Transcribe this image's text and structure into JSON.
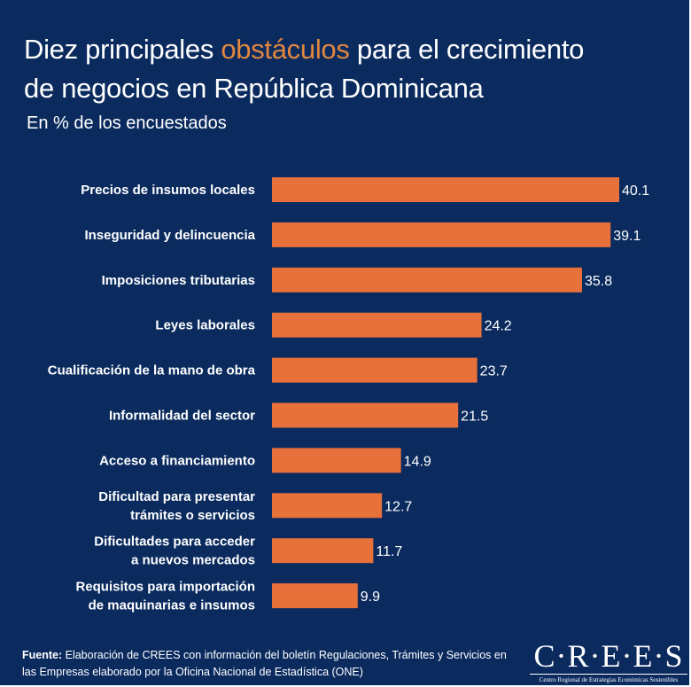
{
  "title": {
    "before": "Diez principales ",
    "highlight": "obstáculos",
    "after": " para el crecimiento de negocios en República Dominicana"
  },
  "subtitle": "En % de los encuestados",
  "chart_data": {
    "type": "bar",
    "orientation": "horizontal",
    "title": "Diez principales obstáculos para el crecimiento de negocios en República Dominicana",
    "subtitle": "En % de los encuestados",
    "categories": [
      "Precios de insumos locales",
      "Inseguridad y delincuencia",
      "Imposiciones tributarias",
      "Leyes laborales",
      "Cualificación de la mano de obra",
      "Informalidad del sector",
      "Acceso a financiamiento",
      "Dificultad para presentar trámites o servicios",
      "Dificultades para acceder a nuevos mercados",
      "Requisitos para importación de maquinarias e insumos"
    ],
    "label_lines": [
      [
        "Precios de insumos locales"
      ],
      [
        "Inseguridad y delincuencia"
      ],
      [
        "Imposiciones tributarias"
      ],
      [
        "Leyes laborales"
      ],
      [
        "Cualificación de la mano de obra"
      ],
      [
        "Informalidad del sector"
      ],
      [
        "Acceso a financiamiento"
      ],
      [
        "Dificultad para presentar",
        "trámites o servicios"
      ],
      [
        "Dificultades para acceder",
        "a nuevos mercados"
      ],
      [
        "Requisitos para importación",
        "de maquinarias e insumos"
      ]
    ],
    "values": [
      40.1,
      39.1,
      35.8,
      24.2,
      23.7,
      21.5,
      14.9,
      12.7,
      11.7,
      9.9
    ],
    "xlim": [
      0,
      40.1
    ],
    "grid": false,
    "data_labels": true,
    "bar_color": "#e8703a"
  },
  "colors": {
    "background": "#0b2b5f",
    "accent": "#e1873f",
    "bar": "#e8703a"
  },
  "footer": {
    "source_label": "Fuente:",
    "source_text": " Elaboración de CREES con información del boletín Regulaciones, Trámites y Servicios en las Empresas elaborado por la Oficina Nacional de Estadística (ONE)",
    "logo_name": "C·R·E·E·S",
    "logo_tagline": "Centro Regional de Estrategias Económicas Sostenibles"
  }
}
